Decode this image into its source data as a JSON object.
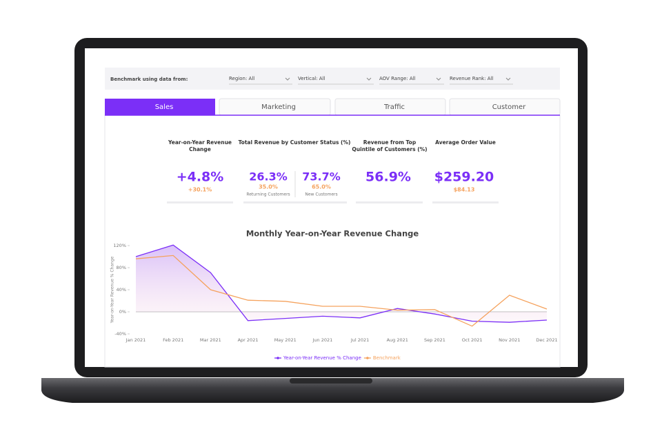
{
  "filters": {
    "label": "Benchmark using data from:",
    "items": [
      "Region: All",
      "Vertical: All",
      "AOV Range: All",
      "Revenue Rank: All"
    ]
  },
  "tabs": [
    "Sales",
    "Marketing",
    "Traffic",
    "Customer"
  ],
  "kpis": [
    {
      "title": [
        "Year-on-Year Revenue",
        "Change"
      ],
      "value": "+4.8%",
      "benchmark": "+30.1%"
    },
    {
      "title": [
        "Total Revenue by Customer Status (%)"
      ],
      "parts": [
        {
          "value": "26.3%",
          "benchmark": "35.0%",
          "label": "Returning Customers"
        },
        {
          "value": "73.7%",
          "benchmark": "65.0%",
          "label": "New Customers"
        }
      ]
    },
    {
      "title": [
        "Revenue from Top",
        "Quintile of Customers (%)"
      ],
      "value": "56.9%"
    },
    {
      "title": [
        "Average Order Value"
      ],
      "value": "$259.20",
      "benchmark": "$84.13"
    }
  ],
  "chart_data": {
    "type": "line",
    "title": "Monthly Year-on-Year Revenue Change",
    "y_label": "Year-on-Year Revenue % Change",
    "categories": [
      "Jan 2021",
      "Feb 2021",
      "Mar 2021",
      "Apr 2021",
      "May 2021",
      "Jun 2021",
      "Jul 2021",
      "Aug 2021",
      "Sep 2021",
      "Oct 2021",
      "Nov 2021",
      "Dec 2021"
    ],
    "series": [
      {
        "name": "Year-on-Year Revenue % Change",
        "color": "#7b2ff7",
        "values": [
          100,
          121,
          71,
          -16,
          -12,
          -8,
          -11,
          6,
          -4,
          -17,
          -19,
          -15
        ]
      },
      {
        "name": "Benchmark",
        "color": "#f5a25d",
        "values": [
          96,
          102,
          40,
          21,
          19,
          10,
          10,
          3,
          4,
          -26,
          30,
          5
        ]
      }
    ],
    "ylim": [
      -40,
      120
    ],
    "yticks": [
      {
        "value": 120,
        "label": "120%"
      },
      {
        "value": 80,
        "label": "80%"
      },
      {
        "value": 40,
        "label": "40%"
      },
      {
        "value": 0,
        "label": "0%"
      },
      {
        "value": -40,
        "label": "-40%"
      }
    ],
    "grid": false
  }
}
